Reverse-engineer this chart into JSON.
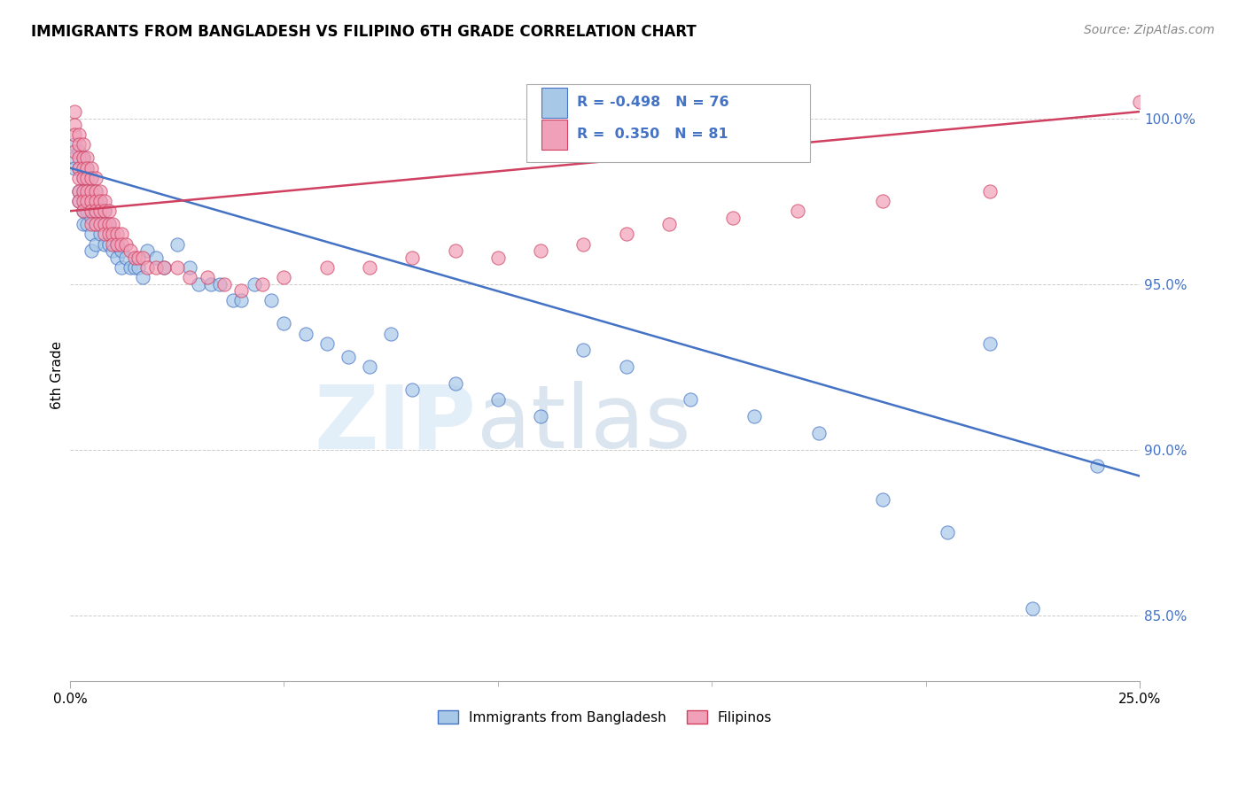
{
  "title": "IMMIGRANTS FROM BANGLADESH VS FILIPINO 6TH GRADE CORRELATION CHART",
  "source": "Source: ZipAtlas.com",
  "ylabel": "6th Grade",
  "xmin": 0.0,
  "xmax": 0.25,
  "ymin": 83.0,
  "ymax": 101.5,
  "legend_r1": "-0.498",
  "legend_n1": "76",
  "legend_r2": "0.350",
  "legend_n2": "81",
  "blue_color": "#a8c8e8",
  "pink_color": "#f0a0b8",
  "blue_line_color": "#4472c4",
  "pink_line_color": "#d04060",
  "label1": "Immigrants from Bangladesh",
  "label2": "Filipinos",
  "watermark_zip": "ZIP",
  "watermark_atlas": "atlas",
  "blue_trend_x": [
    0.0,
    0.25
  ],
  "blue_trend_y": [
    98.5,
    89.2
  ],
  "pink_trend_x": [
    0.0,
    0.25
  ],
  "pink_trend_y": [
    97.2,
    100.2
  ],
  "blue_scatter_x": [
    0.001,
    0.001,
    0.001,
    0.002,
    0.002,
    0.002,
    0.002,
    0.003,
    0.003,
    0.003,
    0.003,
    0.003,
    0.004,
    0.004,
    0.004,
    0.004,
    0.005,
    0.005,
    0.005,
    0.005,
    0.005,
    0.006,
    0.006,
    0.006,
    0.006,
    0.007,
    0.007,
    0.007,
    0.008,
    0.008,
    0.008,
    0.009,
    0.009,
    0.01,
    0.01,
    0.011,
    0.011,
    0.012,
    0.012,
    0.013,
    0.014,
    0.015,
    0.016,
    0.017,
    0.018,
    0.02,
    0.022,
    0.025,
    0.028,
    0.03,
    0.033,
    0.035,
    0.038,
    0.04,
    0.043,
    0.047,
    0.05,
    0.055,
    0.06,
    0.065,
    0.07,
    0.075,
    0.08,
    0.09,
    0.1,
    0.11,
    0.12,
    0.13,
    0.145,
    0.16,
    0.175,
    0.19,
    0.205,
    0.215,
    0.225,
    0.24
  ],
  "blue_scatter_y": [
    99.2,
    98.8,
    98.5,
    99.0,
    98.5,
    97.8,
    97.5,
    98.8,
    98.2,
    97.8,
    97.2,
    96.8,
    98.5,
    97.8,
    97.2,
    96.8,
    98.2,
    97.5,
    97.0,
    96.5,
    96.0,
    97.8,
    97.2,
    96.8,
    96.2,
    97.5,
    97.0,
    96.5,
    97.2,
    96.8,
    96.2,
    96.8,
    96.2,
    96.5,
    96.0,
    96.2,
    95.8,
    96.0,
    95.5,
    95.8,
    95.5,
    95.5,
    95.5,
    95.2,
    96.0,
    95.8,
    95.5,
    96.2,
    95.5,
    95.0,
    95.0,
    95.0,
    94.5,
    94.5,
    95.0,
    94.5,
    93.8,
    93.5,
    93.2,
    92.8,
    92.5,
    93.5,
    91.8,
    92.0,
    91.5,
    91.0,
    93.0,
    92.5,
    91.5,
    91.0,
    90.5,
    88.5,
    87.5,
    93.2,
    85.2,
    89.5
  ],
  "pink_scatter_x": [
    0.001,
    0.001,
    0.001,
    0.001,
    0.002,
    0.002,
    0.002,
    0.002,
    0.002,
    0.002,
    0.002,
    0.003,
    0.003,
    0.003,
    0.003,
    0.003,
    0.003,
    0.003,
    0.004,
    0.004,
    0.004,
    0.004,
    0.004,
    0.005,
    0.005,
    0.005,
    0.005,
    0.005,
    0.005,
    0.006,
    0.006,
    0.006,
    0.006,
    0.006,
    0.007,
    0.007,
    0.007,
    0.007,
    0.008,
    0.008,
    0.008,
    0.008,
    0.009,
    0.009,
    0.009,
    0.01,
    0.01,
    0.01,
    0.011,
    0.011,
    0.012,
    0.012,
    0.013,
    0.014,
    0.015,
    0.016,
    0.017,
    0.018,
    0.02,
    0.022,
    0.025,
    0.028,
    0.032,
    0.036,
    0.04,
    0.045,
    0.05,
    0.06,
    0.07,
    0.08,
    0.09,
    0.1,
    0.11,
    0.12,
    0.13,
    0.14,
    0.155,
    0.17,
    0.19,
    0.215,
    0.25
  ],
  "pink_scatter_y": [
    100.2,
    99.8,
    99.5,
    99.0,
    99.5,
    99.2,
    98.8,
    98.5,
    98.2,
    97.8,
    97.5,
    99.2,
    98.8,
    98.5,
    98.2,
    97.8,
    97.5,
    97.2,
    98.8,
    98.5,
    98.2,
    97.8,
    97.5,
    98.5,
    98.2,
    97.8,
    97.5,
    97.2,
    96.8,
    98.2,
    97.8,
    97.5,
    97.2,
    96.8,
    97.8,
    97.5,
    97.2,
    96.8,
    97.5,
    97.2,
    96.8,
    96.5,
    97.2,
    96.8,
    96.5,
    96.8,
    96.5,
    96.2,
    96.5,
    96.2,
    96.5,
    96.2,
    96.2,
    96.0,
    95.8,
    95.8,
    95.8,
    95.5,
    95.5,
    95.5,
    95.5,
    95.2,
    95.2,
    95.0,
    94.8,
    95.0,
    95.2,
    95.5,
    95.5,
    95.8,
    96.0,
    95.8,
    96.0,
    96.2,
    96.5,
    96.8,
    97.0,
    97.2,
    97.5,
    97.8,
    100.5
  ]
}
